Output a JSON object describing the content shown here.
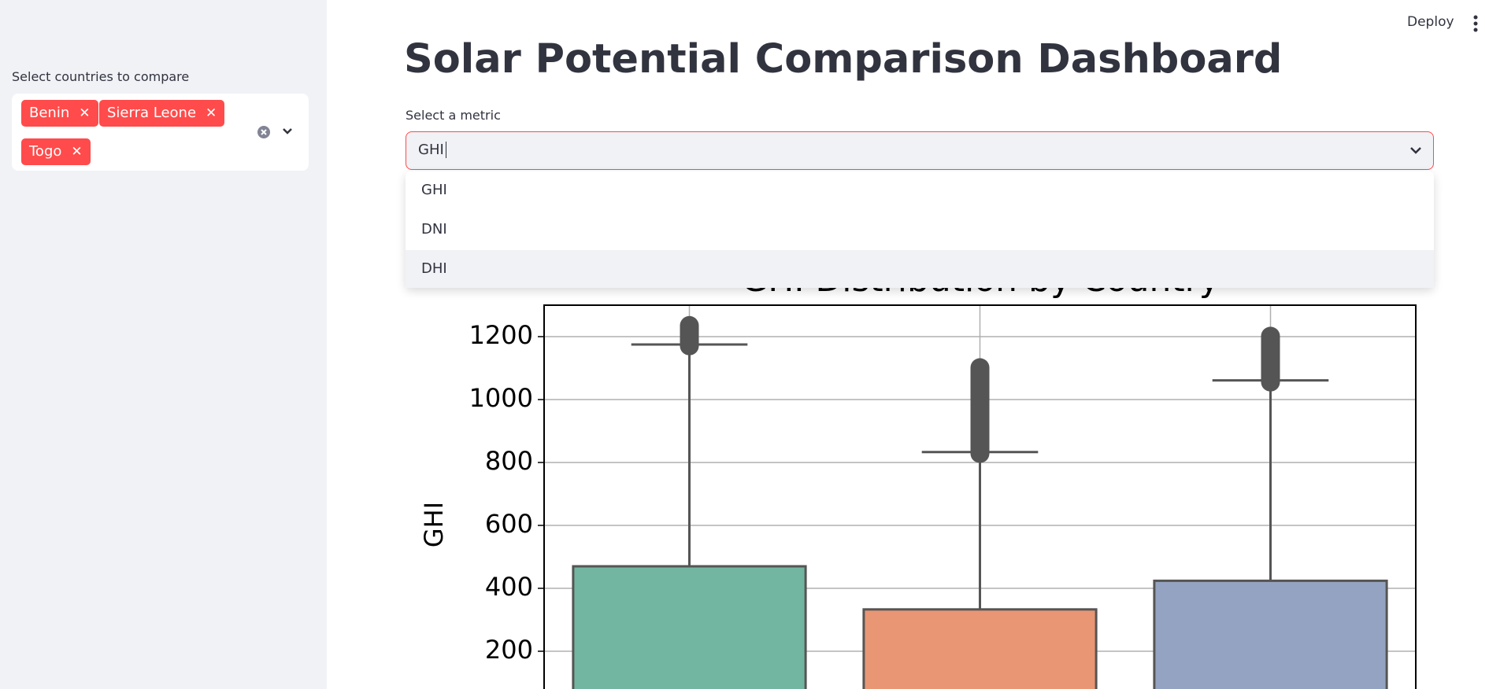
{
  "sidebar": {
    "label": "Select countries to compare",
    "selected": [
      "Benin",
      "Sierra Leone",
      "Togo"
    ]
  },
  "header": {
    "deploy": "Deploy"
  },
  "main": {
    "title": "Solar Potential Comparison Dashboard",
    "metric_label": "Select a metric",
    "metric_input": "GHI",
    "options": [
      "GHI",
      "DNI",
      "DHI"
    ]
  },
  "chart_data": {
    "type": "box",
    "title": "GHI Distribution by Country",
    "y_label": "GHI",
    "categories": [
      null,
      null,
      null
    ],
    "boxes": [
      {
        "color": "#72b6a1",
        "q3": 470,
        "whisker_high": 1175,
        "outlier_min": 1148,
        "outlier_max": 1258
      },
      {
        "color": "#e99675",
        "q3": 333,
        "whisker_high": 833,
        "outlier_min": 806,
        "outlier_max": 1124
      },
      {
        "color": "#95a3c3",
        "q3": 424,
        "whisker_high": 1061,
        "outlier_min": 1033,
        "outlier_max": 1224
      }
    ],
    "ylim": [
      0,
      1300
    ],
    "yticks": [
      200,
      400,
      600,
      800,
      1000,
      1200
    ],
    "grid": true
  }
}
